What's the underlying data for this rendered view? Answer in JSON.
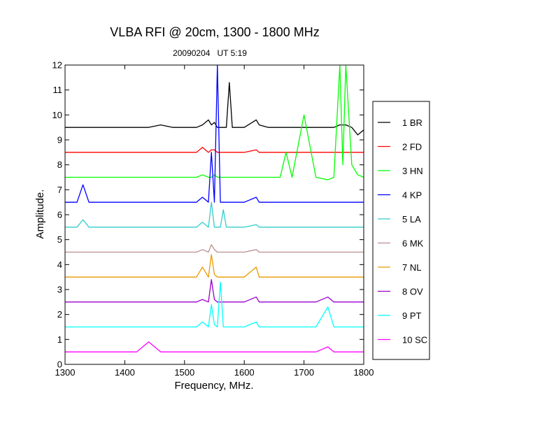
{
  "chart_data": {
    "type": "line",
    "title": "VLBA RFI @ 20cm, 1300 - 1800 MHz",
    "subtitle": "20090204   UT 5:19",
    "xlabel": "Frequency, MHz.",
    "ylabel": "Amplitude.",
    "xlim": [
      1300,
      1800
    ],
    "ylim": [
      0,
      12
    ],
    "xticks": [
      "1300",
      "1400",
      "1500",
      "1600",
      "1700",
      "1800"
    ],
    "yticks": [
      "0",
      "1",
      "2",
      "3",
      "4",
      "5",
      "6",
      "7",
      "8",
      "9",
      "10",
      "11",
      "12"
    ],
    "grid": false,
    "legend_position": "right",
    "x": [
      1300,
      1320,
      1330,
      1340,
      1360,
      1380,
      1400,
      1420,
      1440,
      1460,
      1480,
      1500,
      1520,
      1530,
      1540,
      1545,
      1550,
      1555,
      1560,
      1565,
      1570,
      1575,
      1580,
      1600,
      1620,
      1625,
      1640,
      1660,
      1670,
      1680,
      1700,
      1720,
      1740,
      1750,
      1760,
      1765,
      1770,
      1780,
      1790,
      1800
    ],
    "series": [
      {
        "name": "1 BR",
        "color": "#000000",
        "values": [
          9.5,
          9.5,
          9.5,
          9.5,
          9.5,
          9.5,
          9.5,
          9.5,
          9.5,
          9.6,
          9.5,
          9.5,
          9.5,
          9.6,
          9.8,
          9.6,
          9.7,
          9.5,
          9.5,
          9.5,
          9.5,
          11.3,
          9.5,
          9.5,
          9.8,
          9.6,
          9.5,
          9.5,
          9.5,
          9.5,
          9.5,
          9.5,
          9.5,
          9.5,
          9.6,
          9.6,
          9.6,
          9.5,
          9.2,
          9.4
        ]
      },
      {
        "name": "2 FD",
        "color": "#ff0000",
        "values": [
          8.5,
          8.5,
          8.5,
          8.5,
          8.5,
          8.5,
          8.5,
          8.5,
          8.5,
          8.5,
          8.5,
          8.5,
          8.5,
          8.7,
          8.5,
          8.6,
          8.6,
          8.5,
          8.5,
          8.5,
          8.5,
          8.5,
          8.5,
          8.5,
          8.6,
          8.5,
          8.5,
          8.5,
          8.5,
          8.5,
          8.5,
          8.5,
          8.5,
          8.5,
          8.5,
          8.5,
          8.5,
          8.5,
          8.5,
          8.5
        ]
      },
      {
        "name": "3 HN",
        "color": "#00ff00",
        "values": [
          7.5,
          7.5,
          7.5,
          7.5,
          7.5,
          7.5,
          7.5,
          7.5,
          7.5,
          7.5,
          7.5,
          7.5,
          7.5,
          7.6,
          7.5,
          7.5,
          7.6,
          7.5,
          7.5,
          7.5,
          7.5,
          7.5,
          7.5,
          7.5,
          7.5,
          7.5,
          7.5,
          7.5,
          8.5,
          7.5,
          10.0,
          7.5,
          7.4,
          7.5,
          12.0,
          8.0,
          12.0,
          8.0,
          7.6,
          7.5
        ]
      },
      {
        "name": "4 KP",
        "color": "#0000ff",
        "values": [
          6.5,
          6.5,
          7.2,
          6.5,
          6.5,
          6.5,
          6.5,
          6.5,
          6.5,
          6.5,
          6.5,
          6.5,
          6.5,
          6.7,
          6.5,
          8.5,
          6.5,
          12.0,
          6.5,
          6.5,
          6.5,
          6.5,
          6.5,
          6.5,
          6.7,
          6.5,
          6.5,
          6.5,
          6.5,
          6.5,
          6.5,
          6.5,
          6.5,
          6.5,
          6.5,
          6.5,
          6.5,
          6.5,
          6.5,
          6.5
        ]
      },
      {
        "name": "5 LA",
        "color": "#33cccc",
        "values": [
          5.5,
          5.5,
          5.8,
          5.5,
          5.5,
          5.5,
          5.5,
          5.5,
          5.5,
          5.5,
          5.5,
          5.5,
          5.5,
          5.7,
          5.5,
          6.5,
          5.5,
          5.5,
          5.5,
          6.2,
          5.5,
          5.5,
          5.5,
          5.5,
          5.6,
          5.5,
          5.5,
          5.5,
          5.5,
          5.5,
          5.5,
          5.5,
          5.5,
          5.5,
          5.5,
          5.5,
          5.5,
          5.5,
          5.5,
          5.5
        ]
      },
      {
        "name": "6 MK",
        "color": "#bc8f8f",
        "values": [
          4.5,
          4.5,
          4.5,
          4.5,
          4.5,
          4.5,
          4.5,
          4.5,
          4.5,
          4.5,
          4.5,
          4.5,
          4.5,
          4.6,
          4.5,
          4.8,
          4.6,
          4.5,
          4.5,
          4.5,
          4.5,
          4.5,
          4.5,
          4.5,
          4.6,
          4.5,
          4.5,
          4.5,
          4.5,
          4.5,
          4.5,
          4.5,
          4.5,
          4.5,
          4.5,
          4.5,
          4.5,
          4.5,
          4.5,
          4.5
        ]
      },
      {
        "name": "7 NL",
        "color": "#e69a00",
        "values": [
          3.5,
          3.5,
          3.5,
          3.5,
          3.5,
          3.5,
          3.5,
          3.5,
          3.5,
          3.5,
          3.5,
          3.5,
          3.5,
          3.9,
          3.5,
          4.4,
          3.6,
          3.5,
          3.5,
          3.5,
          3.5,
          3.5,
          3.5,
          3.5,
          3.9,
          3.5,
          3.5,
          3.5,
          3.5,
          3.5,
          3.5,
          3.5,
          3.5,
          3.5,
          3.5,
          3.5,
          3.5,
          3.5,
          3.5,
          3.5
        ]
      },
      {
        "name": "8 OV",
        "color": "#9900cc",
        "values": [
          2.5,
          2.5,
          2.5,
          2.5,
          2.5,
          2.5,
          2.5,
          2.5,
          2.5,
          2.5,
          2.5,
          2.5,
          2.5,
          2.6,
          2.5,
          3.4,
          2.6,
          2.5,
          2.5,
          2.5,
          2.5,
          2.5,
          2.5,
          2.5,
          2.7,
          2.5,
          2.5,
          2.5,
          2.5,
          2.5,
          2.5,
          2.5,
          2.7,
          2.5,
          2.5,
          2.5,
          2.5,
          2.5,
          2.5,
          2.5
        ]
      },
      {
        "name": "9 PT",
        "color": "#00ffff",
        "values": [
          1.5,
          1.5,
          1.5,
          1.5,
          1.5,
          1.5,
          1.5,
          1.5,
          1.5,
          1.5,
          1.5,
          1.5,
          1.5,
          1.7,
          1.5,
          2.4,
          1.6,
          1.5,
          3.3,
          1.5,
          1.5,
          1.5,
          1.5,
          1.5,
          1.7,
          1.5,
          1.5,
          1.5,
          1.5,
          1.5,
          1.5,
          1.5,
          2.3,
          1.5,
          1.5,
          1.5,
          1.5,
          1.5,
          1.5,
          1.5
        ]
      },
      {
        "name": "10 SC",
        "color": "#ff00ff",
        "values": [
          0.5,
          0.5,
          0.5,
          0.5,
          0.5,
          0.5,
          0.5,
          0.5,
          0.9,
          0.5,
          0.5,
          0.5,
          0.5,
          0.5,
          0.5,
          0.5,
          0.5,
          0.5,
          0.5,
          0.5,
          0.5,
          0.5,
          0.5,
          0.5,
          0.5,
          0.5,
          0.5,
          0.5,
          0.5,
          0.5,
          0.5,
          0.5,
          0.7,
          0.5,
          0.5,
          0.5,
          0.5,
          0.5,
          0.5,
          0.5
        ]
      }
    ]
  }
}
